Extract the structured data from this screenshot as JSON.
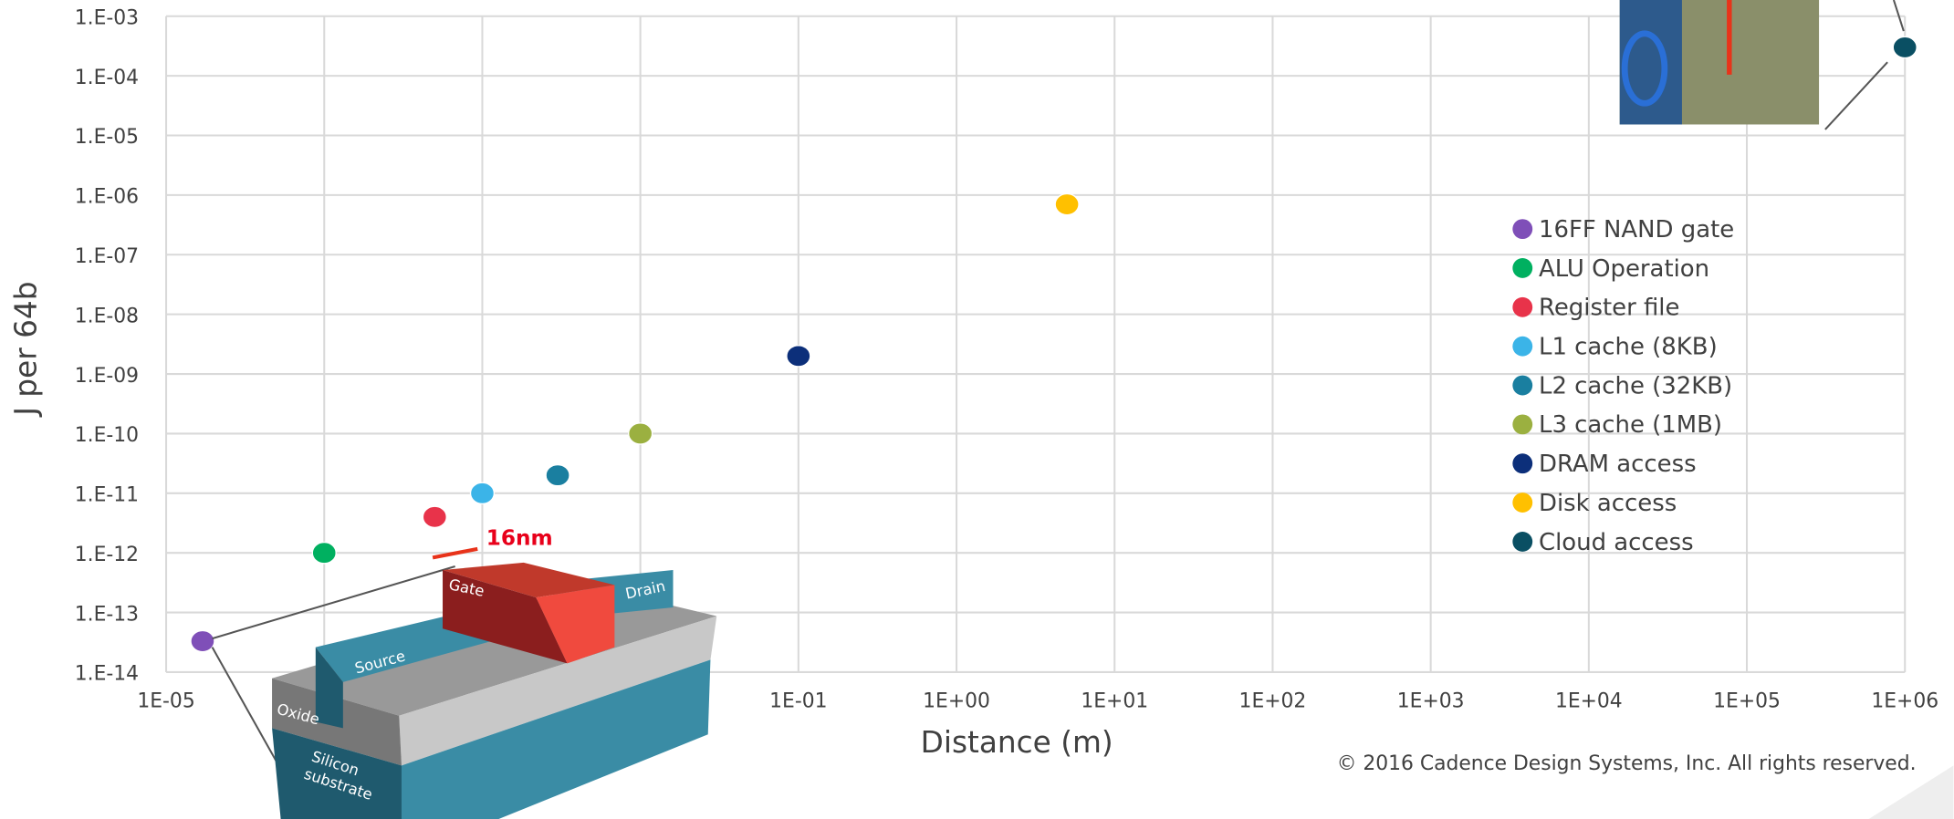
{
  "chart_data": {
    "type": "scatter",
    "x_label": "Distance (m)",
    "y_label": "J per 64b",
    "log_x": true,
    "log_y": true,
    "grid": true,
    "xlim": [
      1e-05,
      1000000
    ],
    "ylim": [
      1e-14,
      0.001
    ],
    "xticks": [
      {
        "value": 1e-05,
        "label": "1E-05"
      },
      {
        "value": 0.0001,
        "label": null
      },
      {
        "value": 0.001,
        "label": null
      },
      {
        "value": 0.01,
        "label": null
      },
      {
        "value": 0.1,
        "label": "1E-01"
      },
      {
        "value": 1,
        "label": "1E+00"
      },
      {
        "value": 10,
        "label": "1E+01"
      },
      {
        "value": 100,
        "label": "1E+02"
      },
      {
        "value": 1000,
        "label": "1E+03"
      },
      {
        "value": 10000,
        "label": "1E+04"
      },
      {
        "value": 100000,
        "label": "1E+05"
      },
      {
        "value": 1000000,
        "label": "1E+06"
      }
    ],
    "yticks": [
      {
        "value": 1e-14,
        "label": "1.E-14"
      },
      {
        "value": 1e-13,
        "label": "1.E-13"
      },
      {
        "value": 1e-12,
        "label": "1.E-12"
      },
      {
        "value": 1e-11,
        "label": "1.E-11"
      },
      {
        "value": 1e-10,
        "label": "1.E-10"
      },
      {
        "value": 1e-09,
        "label": "1.E-09"
      },
      {
        "value": 1e-08,
        "label": "1.E-08"
      },
      {
        "value": 1e-07,
        "label": "1.E-07"
      },
      {
        "value": 1e-06,
        "label": "1.E-06"
      },
      {
        "value": 1e-05,
        "label": "1.E-05"
      },
      {
        "value": 0.0001,
        "label": "1.E-04"
      },
      {
        "value": 0.001,
        "label": "1.E-03"
      }
    ],
    "series": [
      {
        "name": "16FF NAND gate",
        "color": "#7f4fb8",
        "x": [
          1.7e-05
        ],
        "values": [
          3.3e-14
        ]
      },
      {
        "name": "ALU Operation",
        "color": "#00b060",
        "x": [
          0.0001
        ],
        "values": [
          1e-12
        ]
      },
      {
        "name": "Register file",
        "color": "#e8334a",
        "x": [
          0.0005
        ],
        "values": [
          4e-12
        ]
      },
      {
        "name": "L1 cache (8KB)",
        "color": "#3bb4e8",
        "x": [
          0.001
        ],
        "values": [
          1e-11
        ]
      },
      {
        "name": "L2 cache (32KB)",
        "color": "#1a7fa0",
        "x": [
          0.003
        ],
        "values": [
          2e-11
        ]
      },
      {
        "name": "L3 cache (1MB)",
        "color": "#9bb040",
        "x": [
          0.01
        ],
        "values": [
          1e-10
        ]
      },
      {
        "name": "DRAM access",
        "color": "#0c2f7a",
        "x": [
          0.1
        ],
        "values": [
          2e-09
        ]
      },
      {
        "name": "Disk access",
        "color": "#ffc000",
        "x": [
          5
        ],
        "values": [
          7e-07
        ]
      },
      {
        "name": "Cloud access",
        "color": "#0a4f63",
        "x": [
          1000000
        ],
        "values": [
          0.0003
        ]
      }
    ],
    "annotations": [
      "16nm",
      "Gate",
      "Drain",
      "Source",
      "Oxide",
      "Silicon",
      "substrate",
      "© 2016 Cadence Design Systems, Inc. All rights reserved."
    ]
  }
}
